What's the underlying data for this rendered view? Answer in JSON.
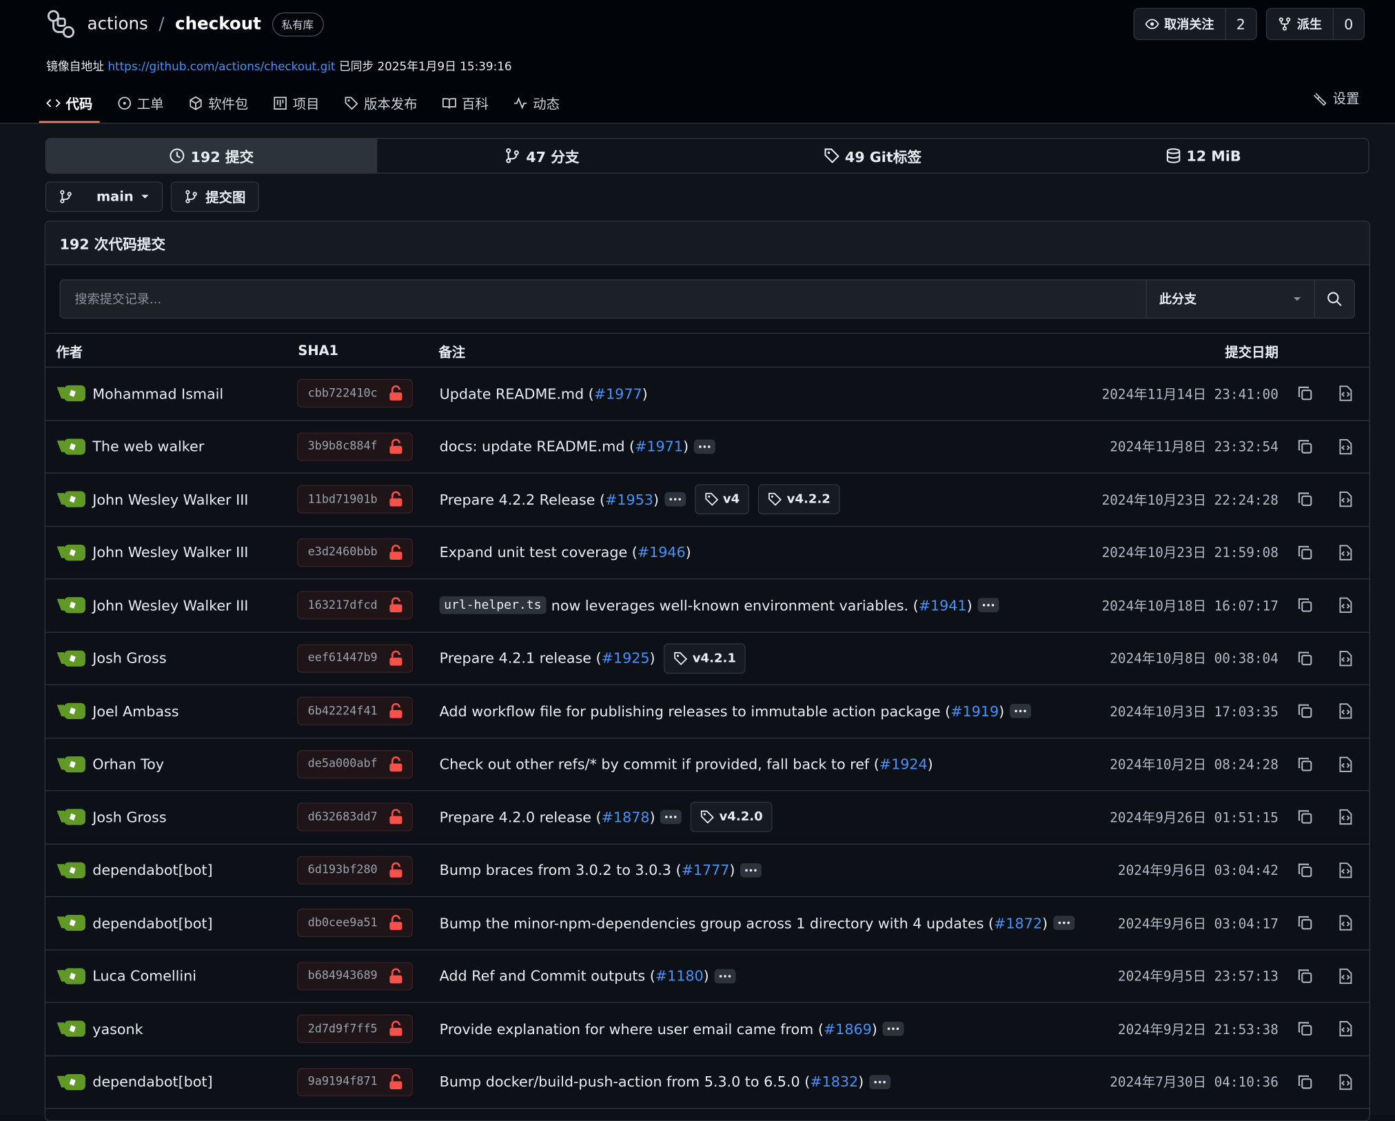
{
  "header": {
    "owner": "actions",
    "separator": "/",
    "repo": "checkout",
    "visibility": "私有库",
    "mirror_label": "镜像自地址",
    "mirror_url": "https://github.com/actions/checkout.git",
    "synced": "已同步 2025年1月9日 15:39:16",
    "watch": {
      "label": "取消关注",
      "count": "2"
    },
    "fork": {
      "label": "派生",
      "count": "0"
    }
  },
  "nav": {
    "tabs": [
      "代码",
      "工单",
      "软件包",
      "项目",
      "版本发布",
      "百科",
      "动态"
    ],
    "active": 0,
    "settings": "设置"
  },
  "stats": [
    "192 提交",
    "47 分支",
    "49 Git标签",
    "12 MiB"
  ],
  "branch": {
    "name": "main",
    "graph": "提交图"
  },
  "box": {
    "title": "192 次代码提交",
    "search_placeholder": "搜索提交记录...",
    "scope": "此分支"
  },
  "table": {
    "headers": [
      "作者",
      "SHA1",
      "备注",
      "提交日期"
    ],
    "rows": [
      {
        "author": "Mohammad Ismail",
        "sha": "cbb722410c",
        "before": "Update README.md (",
        "pr": "#1977",
        "after": ")",
        "expandable": false,
        "tags": [],
        "date": "2024年11月14日 23:41:00"
      },
      {
        "author": "The web walker",
        "sha": "3b9b8c884f",
        "before": "docs: update README.md (",
        "pr": "#1971",
        "after": ")",
        "expandable": true,
        "tags": [],
        "date": "2024年11月8日 23:32:54"
      },
      {
        "author": "John Wesley Walker III",
        "sha": "11bd71901b",
        "before": "Prepare 4.2.2 Release (",
        "pr": "#1953",
        "after": ")",
        "expandable": true,
        "tags": [
          "v4",
          "v4.2.2"
        ],
        "date": "2024年10月23日 22:24:28"
      },
      {
        "author": "John Wesley Walker III",
        "sha": "e3d2460bbb",
        "before": "Expand unit test coverage (",
        "pr": "#1946",
        "after": ")",
        "expandable": false,
        "tags": [],
        "date": "2024年10月23日 21:59:08"
      },
      {
        "author": "John Wesley Walker III",
        "sha": "163217dfcd",
        "code": "url-helper.ts",
        "before": "now leverages well-known environment variables. (",
        "pr": "#1941",
        "after": ")",
        "expandable": true,
        "tags": [],
        "date": "2024年10月18日 16:07:17"
      },
      {
        "author": "Josh Gross",
        "sha": "eef61447b9",
        "before": "Prepare 4.2.1 release (",
        "pr": "#1925",
        "after": ")",
        "expandable": false,
        "tags": [
          "v4.2.1"
        ],
        "date": "2024年10月8日 00:38:04"
      },
      {
        "author": "Joel Ambass",
        "sha": "6b42224f41",
        "before": "Add workflow file for publishing releases to immutable action package (",
        "pr": "#1919",
        "after": ")",
        "expandable": true,
        "tags": [],
        "date": "2024年10月3日 17:03:35"
      },
      {
        "author": "Orhan Toy",
        "sha": "de5a000abf",
        "before": "Check out other refs/* by commit if provided, fall back to ref (",
        "pr": "#1924",
        "after": ")",
        "expandable": false,
        "tags": [],
        "date": "2024年10月2日 08:24:28"
      },
      {
        "author": "Josh Gross",
        "sha": "d632683dd7",
        "before": "Prepare 4.2.0 release (",
        "pr": "#1878",
        "after": ")",
        "expandable": true,
        "tags": [
          "v4.2.0"
        ],
        "date": "2024年9月26日 01:51:15"
      },
      {
        "author": "dependabot[bot]",
        "sha": "6d193bf280",
        "before": "Bump braces from 3.0.2 to 3.0.3 (",
        "pr": "#1777",
        "after": ")",
        "expandable": true,
        "tags": [],
        "date": "2024年9月6日 03:04:42"
      },
      {
        "author": "dependabot[bot]",
        "sha": "db0cee9a51",
        "before": "Bump the minor-npm-dependencies group across 1 directory with 4 updates (",
        "pr": "#1872",
        "after": ")",
        "expandable": true,
        "tags": [],
        "date": "2024年9月6日 03:04:17"
      },
      {
        "author": "Luca Comellini",
        "sha": "b684943689",
        "before": "Add Ref and Commit outputs (",
        "pr": "#1180",
        "after": ")",
        "expandable": true,
        "tags": [],
        "date": "2024年9月5日 23:57:13"
      },
      {
        "author": "yasonk",
        "sha": "2d7d9f7ff5",
        "before": "Provide explanation for where user email came from (",
        "pr": "#1869",
        "after": ")",
        "expandable": true,
        "tags": [],
        "date": "2024年9月2日 21:53:38"
      },
      {
        "author": "dependabot[bot]",
        "sha": "9a9194f871",
        "before": "Bump docker/build-push-action from 5.3.0 to 6.5.0 (",
        "pr": "#1832",
        "after": ")",
        "expandable": true,
        "tags": [],
        "date": "2024年7月30日 04:10:36"
      }
    ]
  }
}
